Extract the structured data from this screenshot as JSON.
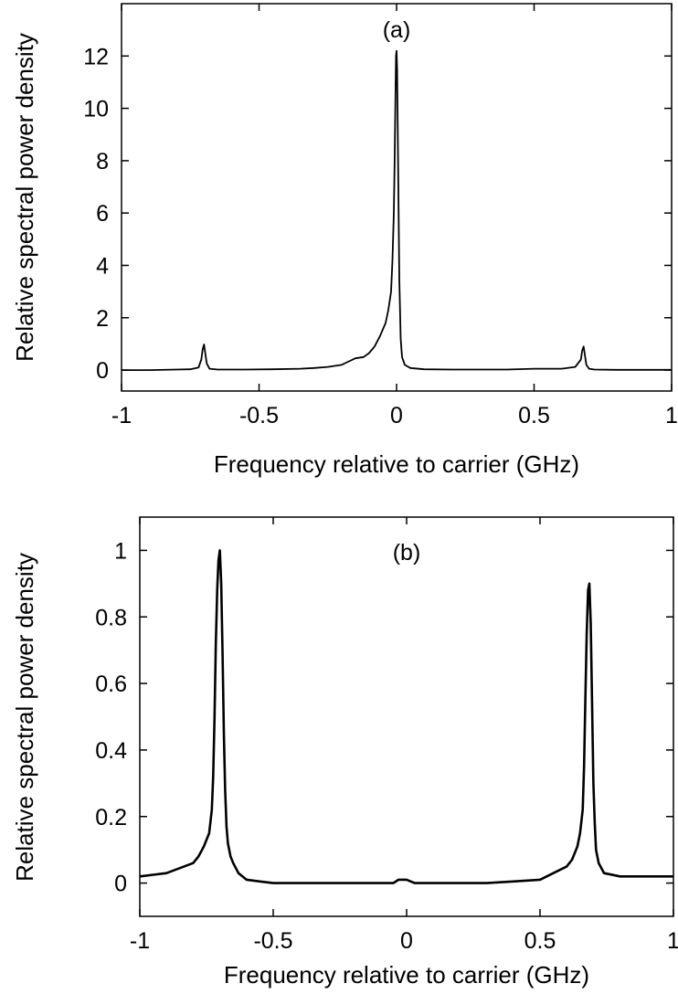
{
  "chart_data": [
    {
      "type": "line",
      "panel_label": "(a)",
      "xlabel": "Frequency relative to carrier (GHz)",
      "ylabel": "Relative spectral power density",
      "xlim": [
        -1,
        1
      ],
      "ylim": [
        -0.8,
        14
      ],
      "xticks": [
        -1,
        -0.5,
        0,
        0.5,
        1
      ],
      "xtick_labels": [
        "-1",
        "-0.5",
        "0",
        "0.5",
        "1"
      ],
      "yticks": [
        0,
        2,
        4,
        6,
        8,
        10,
        12
      ],
      "ytick_labels": [
        "0",
        "2",
        "4",
        "6",
        "8",
        "10",
        "12"
      ],
      "grid": false,
      "legend": "none",
      "series": [
        {
          "color": "#000000",
          "x": [
            -1,
            -0.9,
            -0.8,
            -0.75,
            -0.72,
            -0.71,
            -0.705,
            -0.7,
            -0.695,
            -0.69,
            -0.68,
            -0.65,
            -0.55,
            -0.45,
            -0.35,
            -0.3,
            -0.25,
            -0.2,
            -0.18,
            -0.15,
            -0.12,
            -0.1,
            -0.08,
            -0.06,
            -0.04,
            -0.03,
            -0.02,
            -0.015,
            -0.01,
            -0.007,
            -0.004,
            -0.002,
            0,
            0.002,
            0.004,
            0.007,
            0.01,
            0.015,
            0.02,
            0.03,
            0.05,
            0.1,
            0.2,
            0.3,
            0.4,
            0.5,
            0.6,
            0.65,
            0.67,
            0.675,
            0.68,
            0.685,
            0.69,
            0.7,
            0.72,
            0.8,
            0.9,
            1
          ],
          "y": [
            0,
            0,
            0.02,
            0.03,
            0.1,
            0.4,
            0.8,
            0.98,
            0.6,
            0.25,
            0.05,
            0.02,
            0.02,
            0.03,
            0.05,
            0.08,
            0.12,
            0.2,
            0.3,
            0.45,
            0.5,
            0.65,
            0.9,
            1.3,
            1.8,
            2.3,
            3.0,
            4.2,
            6.0,
            8.0,
            10.5,
            12.0,
            12.2,
            11.5,
            9.5,
            6.5,
            3.5,
            1.2,
            0.5,
            0.2,
            0.08,
            0.03,
            0.02,
            0.02,
            0.02,
            0.05,
            0.05,
            0.12,
            0.4,
            0.75,
            0.9,
            0.55,
            0.2,
            0.05,
            0.02,
            0.01,
            0.01,
            0.01
          ]
        }
      ]
    },
    {
      "type": "line",
      "panel_label": "(b)",
      "xlabel": "Frequency relative to carrier (GHz)",
      "ylabel": "Relative spectral power density",
      "xlim": [
        -1,
        1
      ],
      "ylim": [
        -0.1,
        1.1
      ],
      "xticks": [
        -1,
        -0.5,
        0,
        0.5,
        1
      ],
      "xtick_labels": [
        "-1",
        "-0.5",
        "0",
        "0.5",
        "1"
      ],
      "yticks": [
        0,
        0.2,
        0.4,
        0.6,
        0.8,
        1
      ],
      "ytick_labels": [
        "0",
        "0.2",
        "0.4",
        "0.6",
        "0.8",
        "1"
      ],
      "grid": false,
      "legend": "none",
      "series": [
        {
          "color": "#000000",
          "x": [
            -1,
            -0.95,
            -0.9,
            -0.85,
            -0.8,
            -0.78,
            -0.76,
            -0.74,
            -0.73,
            -0.725,
            -0.72,
            -0.715,
            -0.71,
            -0.705,
            -0.7,
            -0.695,
            -0.69,
            -0.685,
            -0.68,
            -0.675,
            -0.67,
            -0.66,
            -0.65,
            -0.63,
            -0.6,
            -0.55,
            -0.5,
            -0.4,
            -0.3,
            -0.2,
            -0.1,
            -0.05,
            -0.03,
            0,
            0.03,
            0.1,
            0.2,
            0.3,
            0.4,
            0.5,
            0.55,
            0.6,
            0.62,
            0.64,
            0.65,
            0.66,
            0.665,
            0.67,
            0.675,
            0.68,
            0.685,
            0.69,
            0.695,
            0.7,
            0.705,
            0.71,
            0.72,
            0.74,
            0.8,
            0.9,
            1
          ],
          "y": [
            0.02,
            0.025,
            0.03,
            0.045,
            0.06,
            0.08,
            0.11,
            0.15,
            0.22,
            0.32,
            0.5,
            0.72,
            0.88,
            0.97,
            1.0,
            0.9,
            0.7,
            0.45,
            0.28,
            0.17,
            0.12,
            0.08,
            0.06,
            0.03,
            0.01,
            0.005,
            0.0,
            0.0,
            0.0,
            0.0,
            0.0,
            0.0,
            0.01,
            0.01,
            0.0,
            0.0,
            0.0,
            0.0,
            0.005,
            0.01,
            0.03,
            0.05,
            0.07,
            0.11,
            0.15,
            0.22,
            0.35,
            0.55,
            0.75,
            0.88,
            0.9,
            0.78,
            0.55,
            0.3,
            0.18,
            0.1,
            0.06,
            0.03,
            0.02,
            0.02,
            0.02
          ]
        }
      ]
    }
  ]
}
